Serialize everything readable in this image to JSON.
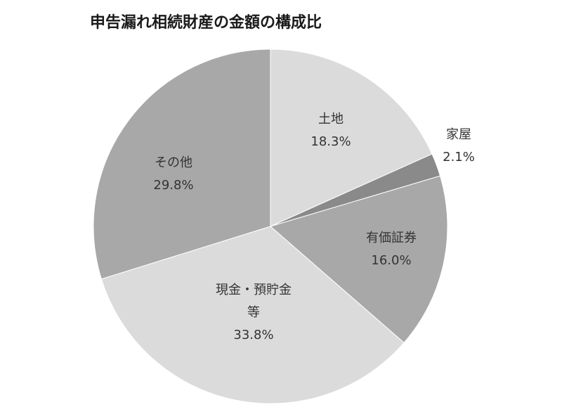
{
  "chart_data": {
    "type": "pie",
    "title": "申告漏れ相続財産の金額の構成比",
    "slices": [
      {
        "category": [
          "土地"
        ],
        "value": 18.3,
        "value_label": "18.3%",
        "color": "#dcdbdb"
      },
      {
        "category": [
          "家屋"
        ],
        "value": 2.1,
        "value_label": "2.1%",
        "color": "#8a8a8a"
      },
      {
        "category": [
          "有価証券"
        ],
        "value": 16.0,
        "value_label": "16.0%",
        "color": "#a8a8a8"
      },
      {
        "category": [
          "現金・預貯金",
          "等"
        ],
        "value": 33.8,
        "value_label": "33.8%",
        "color": "#dcdbdb"
      },
      {
        "category": [
          "その他"
        ],
        "value": 29.8,
        "value_label": "29.8%",
        "color": "#a8a8a8"
      }
    ],
    "start_angle_deg": 0,
    "direction": "clockwise",
    "legend": "none",
    "data_labels": "inside"
  }
}
